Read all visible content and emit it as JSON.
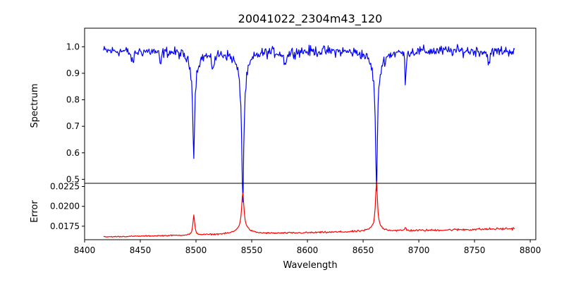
{
  "chart_data": {
    "type": "line",
    "title": "20041022_2304m43_120",
    "xlabel": "Wavelength",
    "xlim": [
      8400,
      8805
    ],
    "xticks": [
      8400,
      8450,
      8500,
      8550,
      8600,
      8650,
      8700,
      8750,
      8800
    ],
    "x_range": [
      8417,
      8786
    ],
    "colors": {
      "spectrum": "#0000ff",
      "error": "#ff0000",
      "axis": "#000000"
    },
    "panels": [
      {
        "id": "spectrum",
        "ylabel": "Spectrum",
        "ylim": [
          0.485,
          1.07
        ],
        "yticks": [
          "0.5",
          "0.6",
          "0.7",
          "0.8",
          "0.9",
          "1.0"
        ],
        "continuum": 0.985,
        "noise": 0.025,
        "features": [
          {
            "center": 8443,
            "depth": 0.05,
            "width": 1.2
          },
          {
            "center": 8468,
            "depth": 0.06,
            "width": 0.8
          },
          {
            "center": 8498,
            "depth": 0.33,
            "width": 0.9,
            "wing": 0.07
          },
          {
            "center": 8515,
            "depth": 0.05,
            "width": 2.0
          },
          {
            "center": 8542,
            "depth": 0.48,
            "width": 1.0,
            "wing": 0.1
          },
          {
            "center": 8580,
            "depth": 0.04,
            "width": 2.0
          },
          {
            "center": 8662,
            "depth": 0.44,
            "width": 1.0,
            "wing": 0.08
          },
          {
            "center": 8688,
            "depth": 0.11,
            "width": 0.6
          },
          {
            "center": 8763,
            "depth": 0.04,
            "width": 1.5
          }
        ]
      },
      {
        "id": "error",
        "ylabel": "Error",
        "ylim": [
          0.0158,
          0.0229
        ],
        "yticks": [
          "0.0175",
          "0.0200",
          "0.0225"
        ],
        "baseline_start": 0.01615,
        "baseline_end": 0.0172,
        "noise": 0.00012,
        "features": [
          {
            "center": 8498,
            "height": 0.0025,
            "width": 0.9
          },
          {
            "center": 8542,
            "height": 0.0045,
            "width": 1.2,
            "wing": 0.0008
          },
          {
            "center": 8662,
            "height": 0.0057,
            "width": 1.0,
            "wing": 0.0006
          },
          {
            "center": 8688,
            "height": 0.0004,
            "width": 0.7
          }
        ]
      }
    ]
  }
}
